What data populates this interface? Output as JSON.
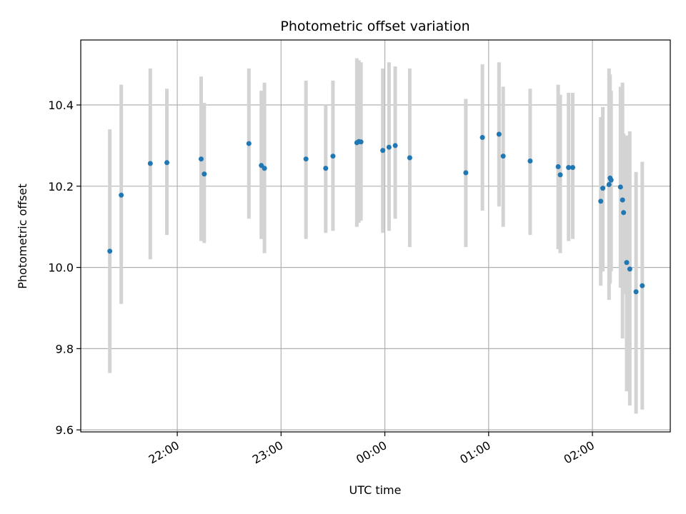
{
  "chart_data": {
    "type": "scatter",
    "title": "Photometric offset variation",
    "xlabel": "UTC time",
    "ylabel": "Photometric offset",
    "grid": true,
    "x_unit": "UTC time of day (hours)",
    "xlim": [
      21.07,
      26.75
    ],
    "ylim": [
      9.595,
      10.56
    ],
    "x_ticks": [
      {
        "value": 22,
        "label": "22:00"
      },
      {
        "value": 23,
        "label": "23:00"
      },
      {
        "value": 24,
        "label": "00:00"
      },
      {
        "value": 25,
        "label": "01:00"
      },
      {
        "value": 26,
        "label": "02:00"
      }
    ],
    "y_ticks": [
      {
        "value": 9.6,
        "label": "9.6"
      },
      {
        "value": 9.8,
        "label": "9.8"
      },
      {
        "value": 10.0,
        "label": "10.0"
      },
      {
        "value": 10.2,
        "label": "10.2"
      },
      {
        "value": 10.4,
        "label": "10.4"
      }
    ],
    "colors": {
      "marker": "#1f77b4",
      "errorbar": "#d3d3d3",
      "grid": "#b0b0b0"
    },
    "points": [
      {
        "x": 21.35,
        "y": 10.04,
        "lo": 9.74,
        "hi": 10.34
      },
      {
        "x": 21.46,
        "y": 10.178,
        "lo": 9.91,
        "hi": 10.45
      },
      {
        "x": 21.74,
        "y": 10.256,
        "lo": 10.02,
        "hi": 10.49
      },
      {
        "x": 21.9,
        "y": 10.258,
        "lo": 10.08,
        "hi": 10.44
      },
      {
        "x": 22.23,
        "y": 10.267,
        "lo": 10.065,
        "hi": 10.47
      },
      {
        "x": 22.26,
        "y": 10.23,
        "lo": 10.06,
        "hi": 10.405
      },
      {
        "x": 22.69,
        "y": 10.305,
        "lo": 10.12,
        "hi": 10.49
      },
      {
        "x": 22.81,
        "y": 10.251,
        "lo": 10.07,
        "hi": 10.435
      },
      {
        "x": 22.84,
        "y": 10.244,
        "lo": 10.035,
        "hi": 10.455
      },
      {
        "x": 23.24,
        "y": 10.267,
        "lo": 10.07,
        "hi": 10.46
      },
      {
        "x": 23.43,
        "y": 10.244,
        "lo": 10.085,
        "hi": 10.4
      },
      {
        "x": 23.5,
        "y": 10.274,
        "lo": 10.09,
        "hi": 10.46
      },
      {
        "x": 23.73,
        "y": 10.307,
        "lo": 10.1,
        "hi": 10.515
      },
      {
        "x": 23.75,
        "y": 10.31,
        "lo": 10.11,
        "hi": 10.51
      },
      {
        "x": 23.77,
        "y": 10.309,
        "lo": 10.115,
        "hi": 10.505
      },
      {
        "x": 23.98,
        "y": 10.288,
        "lo": 10.085,
        "hi": 10.49
      },
      {
        "x": 24.04,
        "y": 10.296,
        "lo": 10.09,
        "hi": 10.505
      },
      {
        "x": 24.1,
        "y": 10.3,
        "lo": 10.12,
        "hi": 10.495
      },
      {
        "x": 24.24,
        "y": 10.27,
        "lo": 10.05,
        "hi": 10.49
      },
      {
        "x": 24.78,
        "y": 10.233,
        "lo": 10.05,
        "hi": 10.415
      },
      {
        "x": 24.94,
        "y": 10.32,
        "lo": 10.14,
        "hi": 10.5
      },
      {
        "x": 25.1,
        "y": 10.328,
        "lo": 10.15,
        "hi": 10.505
      },
      {
        "x": 25.14,
        "y": 10.274,
        "lo": 10.1,
        "hi": 10.445
      },
      {
        "x": 25.4,
        "y": 10.262,
        "lo": 10.08,
        "hi": 10.44
      },
      {
        "x": 25.67,
        "y": 10.248,
        "lo": 10.045,
        "hi": 10.45
      },
      {
        "x": 25.69,
        "y": 10.228,
        "lo": 10.035,
        "hi": 10.425
      },
      {
        "x": 25.77,
        "y": 10.246,
        "lo": 10.065,
        "hi": 10.43
      },
      {
        "x": 25.81,
        "y": 10.246,
        "lo": 10.07,
        "hi": 10.43
      },
      {
        "x": 26.08,
        "y": 10.163,
        "lo": 9.955,
        "hi": 10.37
      },
      {
        "x": 26.1,
        "y": 10.195,
        "lo": 9.99,
        "hi": 10.395
      },
      {
        "x": 26.16,
        "y": 10.204,
        "lo": 9.92,
        "hi": 10.49
      },
      {
        "x": 26.17,
        "y": 10.22,
        "lo": 9.96,
        "hi": 10.475
      },
      {
        "x": 26.18,
        "y": 10.215,
        "lo": 9.99,
        "hi": 10.435
      },
      {
        "x": 26.27,
        "y": 10.198,
        "lo": 9.95,
        "hi": 10.445
      },
      {
        "x": 26.29,
        "y": 10.166,
        "lo": 9.825,
        "hi": 10.455
      },
      {
        "x": 26.3,
        "y": 10.135,
        "lo": 9.935,
        "hi": 10.33
      },
      {
        "x": 26.33,
        "y": 10.012,
        "lo": 9.695,
        "hi": 10.325
      },
      {
        "x": 26.36,
        "y": 9.996,
        "lo": 9.66,
        "hi": 10.335
      },
      {
        "x": 26.42,
        "y": 9.94,
        "lo": 9.64,
        "hi": 10.235
      },
      {
        "x": 26.48,
        "y": 9.955,
        "lo": 9.65,
        "hi": 10.26
      }
    ]
  }
}
